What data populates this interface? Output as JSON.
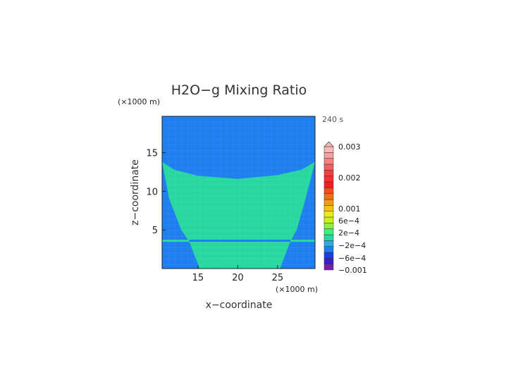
{
  "chart_data": {
    "type": "heatmap",
    "title": "H2O−g Mixing Ratio",
    "xlabel": "x−coordinate",
    "ylabel": "z−coordinate",
    "x_unit": "(×1000 m)",
    "y_unit": "(×1000 m)",
    "time_label": "240 s",
    "xlim": [
      10.5,
      29.7
    ],
    "ylim": [
      0,
      19.7
    ],
    "x_ticks": [
      15,
      20,
      25
    ],
    "y_ticks": [
      5,
      10,
      15
    ],
    "grid": true,
    "background_level": "-2e-4",
    "plume_level": "2e-4",
    "plume_top_z": [
      [
        10.5,
        13.8
      ],
      [
        12,
        12.8
      ],
      [
        15,
        12.0
      ],
      [
        20,
        11.6
      ],
      [
        25,
        12.1
      ],
      [
        28,
        12.8
      ],
      [
        29.7,
        13.8
      ]
    ],
    "plume_bottom_left_x": [
      [
        0,
        15.2
      ],
      [
        3.5,
        13.9
      ],
      [
        5,
        12.9
      ],
      [
        9,
        11.4
      ],
      [
        13.8,
        10.5
      ]
    ],
    "plume_bottom_right_x": [
      [
        0,
        25.3
      ],
      [
        3.5,
        26.6
      ],
      [
        5,
        27.4
      ],
      [
        9,
        28.5
      ],
      [
        13.8,
        29.7
      ]
    ],
    "inner_band_z": 3.6,
    "colorbar": {
      "levels": [
        "0.003",
        "0.002",
        "0.001",
        "6e−4",
        "2e−4",
        "−2e−4",
        "−6e−4",
        "−0.001"
      ],
      "colors": [
        "#7a1fb0",
        "#3a20c8",
        "#1e3ee0",
        "#1f7ff0",
        "#2ea8e8",
        "#28d8a0",
        "#3cf080",
        "#90ee40",
        "#c8f020",
        "#f0e820",
        "#f8c010",
        "#f89810",
        "#f07018",
        "#f05020",
        "#f02020",
        "#f83030",
        "#f04040",
        "#f06060",
        "#f88080",
        "#f8a0a0",
        "#f8b8b8"
      ]
    }
  }
}
